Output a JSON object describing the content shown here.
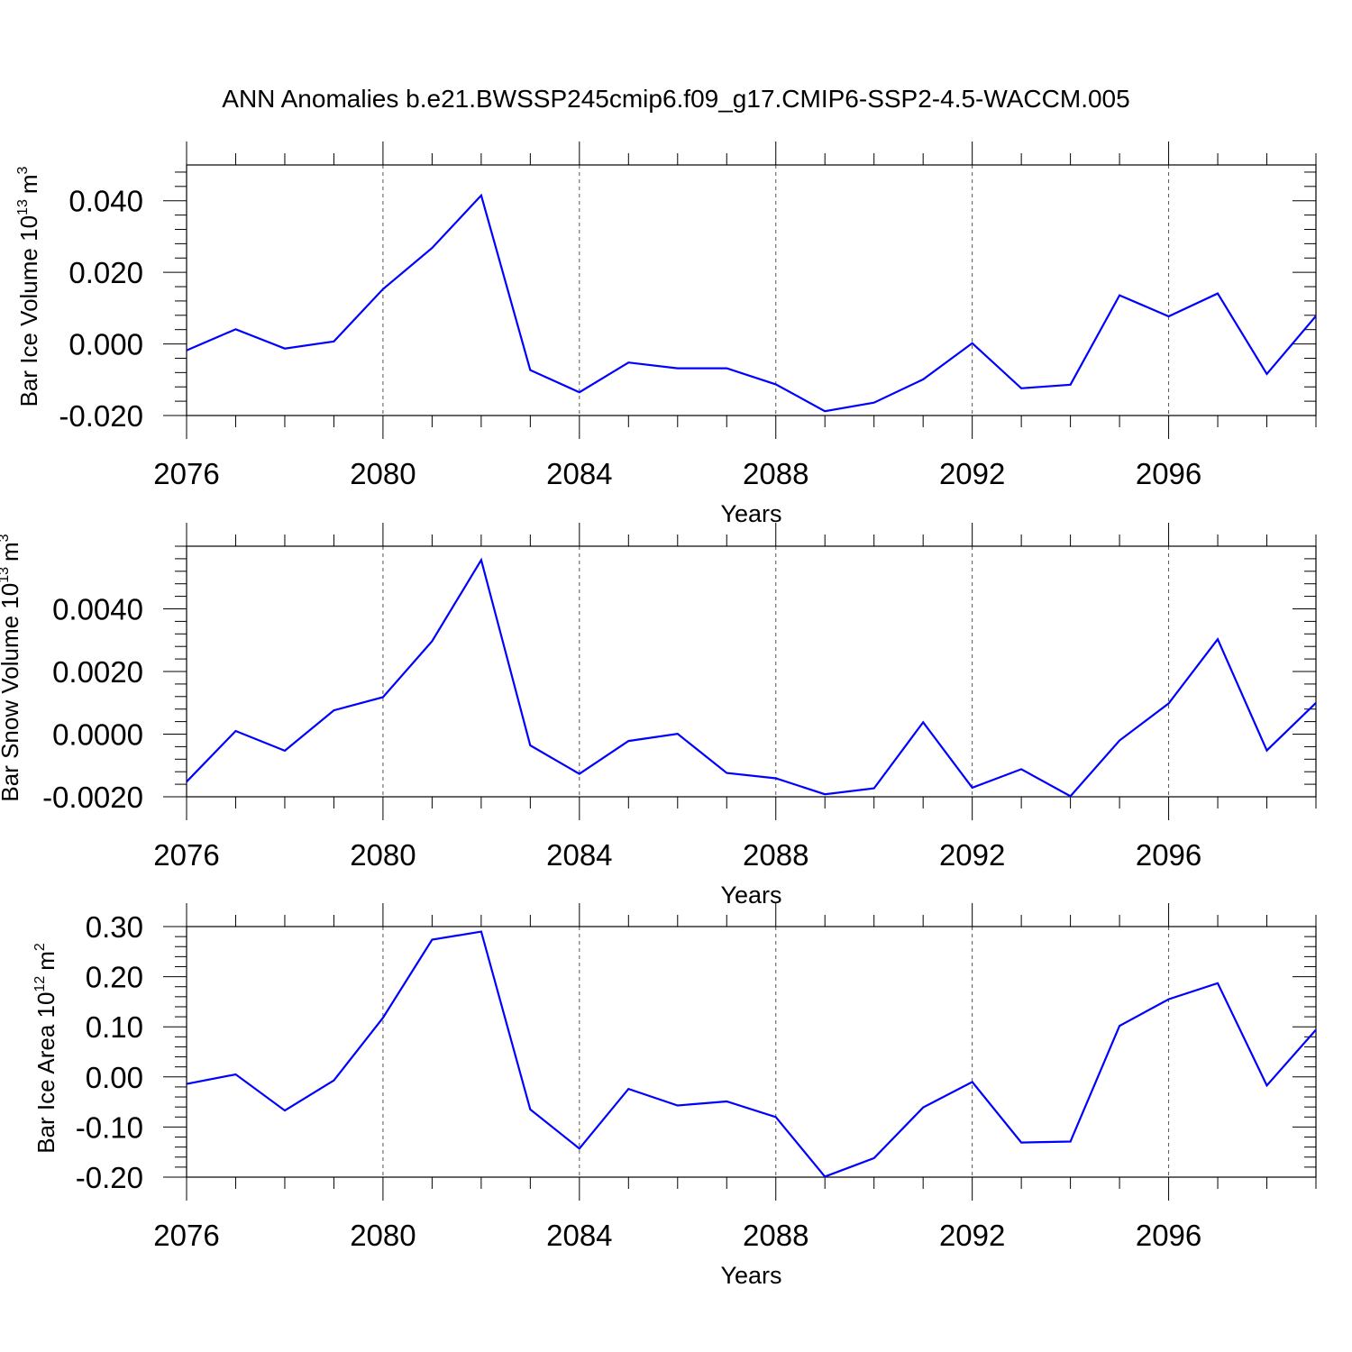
{
  "title": "ANN Anomalies b.e21.BWSSP245cmip6.f09_g17.CMIP6-SSP2-4.5-WACCM.005",
  "colors": {
    "line": "#0000ff",
    "axis": "#000000",
    "grid": "#555555"
  },
  "chart_data": [
    {
      "type": "line",
      "ylabel_main": "Bar Ice Volume 10",
      "ylabel_sup": "13",
      "ylabel_unit": "m",
      "ylabel_unit_sup": "3",
      "xlabel": "Years",
      "xlim": [
        2076,
        2099
      ],
      "ylim": [
        -0.02,
        0.05
      ],
      "x_ticks": [
        2076,
        2080,
        2084,
        2088,
        2092,
        2096
      ],
      "x_tick_labels": [
        "2076",
        "2080",
        "2084",
        "2088",
        "2092",
        "2096"
      ],
      "y_ticks": [
        -0.02,
        0.0,
        0.02,
        0.04
      ],
      "y_tick_labels": [
        "-0.020",
        "0.000",
        "0.020",
        "0.040"
      ],
      "x_gridlines": [
        2080,
        2084,
        2088,
        2092,
        2096
      ],
      "x": [
        2076,
        2077,
        2078,
        2079,
        2080,
        2081,
        2082,
        2083,
        2084,
        2085,
        2086,
        2087,
        2088,
        2089,
        2090,
        2091,
        2092,
        2093,
        2094,
        2095,
        2096,
        2097,
        2098,
        2099
      ],
      "values": [
        -0.0018,
        0.0041,
        -0.0013,
        0.0007,
        0.0153,
        0.0268,
        0.0415,
        -0.0073,
        -0.0135,
        -0.0052,
        -0.0068,
        -0.0068,
        -0.0113,
        -0.0188,
        -0.0164,
        -0.0099,
        0.0002,
        -0.0124,
        -0.0114,
        0.0136,
        0.0077,
        0.0141,
        -0.0084,
        0.0078
      ]
    },
    {
      "type": "line",
      "ylabel_main": "Bar Snow Volume 10",
      "ylabel_sup": "13",
      "ylabel_unit": "m",
      "ylabel_unit_sup": "3",
      "xlabel": "Years",
      "xlim": [
        2076,
        2099
      ],
      "ylim": [
        -0.002,
        0.006
      ],
      "x_ticks": [
        2076,
        2080,
        2084,
        2088,
        2092,
        2096
      ],
      "x_tick_labels": [
        "2076",
        "2080",
        "2084",
        "2088",
        "2092",
        "2096"
      ],
      "y_ticks": [
        -0.002,
        0.0,
        0.002,
        0.004
      ],
      "y_tick_labels": [
        "-0.0020",
        "0.0000",
        "0.0020",
        "0.0040"
      ],
      "x_gridlines": [
        2080,
        2084,
        2088,
        2092,
        2096
      ],
      "x": [
        2076,
        2077,
        2078,
        2079,
        2080,
        2081,
        2082,
        2083,
        2084,
        2085,
        2086,
        2087,
        2088,
        2089,
        2090,
        2091,
        2092,
        2093,
        2094,
        2095,
        2096,
        2097,
        2098,
        2099
      ],
      "values": [
        -0.00152,
        0.0001,
        -0.00053,
        0.00076,
        0.00118,
        0.00297,
        0.00556,
        -0.00036,
        -0.00127,
        -0.00022,
        1e-05,
        -0.00124,
        -0.00141,
        -0.00192,
        -0.00173,
        0.00038,
        -0.00171,
        -0.00112,
        -0.00198,
        -0.0002,
        0.00098,
        0.00303,
        -0.00052,
        0.001
      ]
    },
    {
      "type": "line",
      "ylabel_main": "Bar Ice Area 10",
      "ylabel_sup": "12",
      "ylabel_unit": "m",
      "ylabel_unit_sup": "2",
      "xlabel": "Years",
      "xlim": [
        2076,
        2099
      ],
      "ylim": [
        -0.2,
        0.3
      ],
      "x_ticks": [
        2076,
        2080,
        2084,
        2088,
        2092,
        2096
      ],
      "x_tick_labels": [
        "2076",
        "2080",
        "2084",
        "2088",
        "2092",
        "2096"
      ],
      "y_ticks": [
        -0.2,
        -0.1,
        0.0,
        0.1,
        0.2,
        0.3
      ],
      "y_tick_labels": [
        "-0.20",
        "-0.10",
        "0.00",
        "0.10",
        "0.20",
        "0.30"
      ],
      "x_gridlines": [
        2080,
        2084,
        2088,
        2092,
        2096
      ],
      "x": [
        2076,
        2077,
        2078,
        2079,
        2080,
        2081,
        2082,
        2083,
        2084,
        2085,
        2086,
        2087,
        2088,
        2089,
        2090,
        2091,
        2092,
        2093,
        2094,
        2095,
        2096,
        2097,
        2098,
        2099
      ],
      "values": [
        -0.014,
        0.005,
        -0.067,
        -0.007,
        0.118,
        0.274,
        0.29,
        -0.065,
        -0.143,
        -0.024,
        -0.057,
        -0.049,
        -0.08,
        -0.199,
        -0.162,
        -0.061,
        -0.01,
        -0.131,
        -0.129,
        0.102,
        0.155,
        0.187,
        -0.017,
        0.094
      ]
    }
  ]
}
